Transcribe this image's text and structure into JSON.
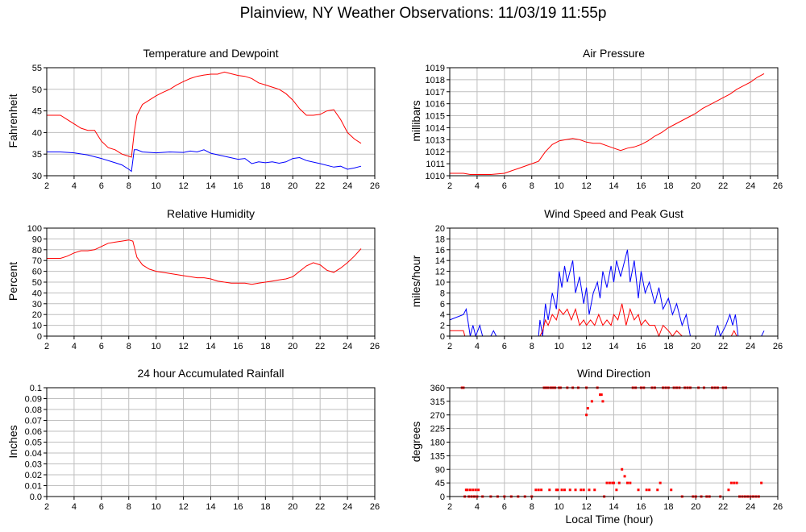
{
  "page": {
    "title": "Plainview, NY Weather Observations: 11/03/19 11:55p"
  },
  "chart_data": [
    {
      "id": "temp",
      "type": "line",
      "title": "Temperature and Dewpoint",
      "ylabel": "Fahrenheit",
      "xlabel": "",
      "xlim": [
        2,
        26
      ],
      "ylim": [
        30,
        55
      ],
      "xticks": [
        2,
        4,
        6,
        8,
        10,
        12,
        14,
        16,
        18,
        20,
        22,
        24,
        26
      ],
      "yticks": [
        30,
        35,
        40,
        45,
        50,
        55
      ],
      "grid": true,
      "series": [
        {
          "color": "#ff0000",
          "x": [
            2,
            3,
            3.5,
            4,
            4.5,
            5,
            5.5,
            6,
            6.5,
            7,
            7.5,
            8,
            8.2,
            8.4,
            8.6,
            9,
            9.5,
            10,
            10.5,
            11,
            11.5,
            12,
            12.5,
            13,
            13.5,
            14,
            14.5,
            15,
            15.5,
            16,
            16.5,
            17,
            17.5,
            18,
            18.5,
            19,
            19.5,
            20,
            20.5,
            21,
            21.5,
            22,
            22.5,
            23,
            23.5,
            24,
            24.5,
            25
          ],
          "y": [
            44,
            44,
            43,
            42,
            41,
            40.5,
            40.5,
            38,
            36.5,
            36,
            35,
            34.5,
            34.3,
            40,
            44,
            46.5,
            47.5,
            48.5,
            49.3,
            50,
            51,
            51.8,
            52.5,
            53,
            53.3,
            53.5,
            53.5,
            54,
            53.6,
            53.2,
            53,
            52.5,
            51.5,
            51,
            50.5,
            50,
            49,
            47.5,
            45.5,
            44,
            44,
            44.2,
            45,
            45.3,
            43,
            40,
            38.5,
            37.5
          ]
        },
        {
          "color": "#0000ff",
          "x": [
            2,
            3,
            4,
            5,
            6,
            7,
            7.5,
            8,
            8.2,
            8.4,
            8.6,
            9,
            10,
            11,
            12,
            12.5,
            13,
            13.5,
            14,
            15,
            16,
            16.5,
            17,
            17.5,
            18,
            18.5,
            19,
            19.5,
            20,
            20.5,
            21,
            22,
            23,
            23.5,
            24,
            24.5,
            25
          ],
          "y": [
            35.5,
            35.5,
            35.3,
            34.8,
            34,
            33,
            32.5,
            31.5,
            31,
            36,
            36,
            35.5,
            35.3,
            35.5,
            35.4,
            35.7,
            35.5,
            36,
            35.2,
            34.5,
            33.8,
            34,
            32.8,
            33.2,
            33,
            33.2,
            32.9,
            33.2,
            34,
            34.2,
            33.5,
            32.8,
            32,
            32.2,
            31.5,
            31.8,
            32.2
          ]
        }
      ]
    },
    {
      "id": "pressure",
      "type": "line",
      "title": "Air Pressure",
      "ylabel": "millibars",
      "xlabel": "",
      "xlim": [
        2,
        26
      ],
      "ylim": [
        1010,
        1019
      ],
      "xticks": [
        2,
        4,
        6,
        8,
        10,
        12,
        14,
        16,
        18,
        20,
        22,
        24,
        26
      ],
      "yticks": [
        1010,
        1011,
        1012,
        1013,
        1014,
        1015,
        1016,
        1017,
        1018,
        1019
      ],
      "grid": true,
      "series": [
        {
          "color": "#ff0000",
          "x": [
            2,
            3,
            3.5,
            4,
            5,
            6,
            6.5,
            7,
            7.5,
            8,
            8.5,
            9,
            9.5,
            10,
            10.5,
            11,
            11.5,
            12,
            12.5,
            13,
            13.5,
            14,
            14.5,
            15,
            15.5,
            16,
            16.5,
            17,
            17.5,
            18,
            18.5,
            19,
            19.5,
            20,
            20.5,
            21,
            21.5,
            22,
            22.5,
            23,
            23.5,
            24,
            24.5,
            25
          ],
          "y": [
            1010.2,
            1010.2,
            1010.1,
            1010.1,
            1010.1,
            1010.2,
            1010.4,
            1010.6,
            1010.8,
            1011,
            1011.2,
            1012,
            1012.6,
            1012.9,
            1013,
            1013.1,
            1013,
            1012.8,
            1012.7,
            1012.7,
            1012.5,
            1012.3,
            1012.1,
            1012.3,
            1012.4,
            1012.6,
            1012.9,
            1013.3,
            1013.6,
            1014,
            1014.3,
            1014.6,
            1014.9,
            1015.2,
            1015.6,
            1015.9,
            1016.2,
            1016.5,
            1016.8,
            1017.2,
            1017.5,
            1017.8,
            1018.2,
            1018.5
          ]
        }
      ]
    },
    {
      "id": "humidity",
      "type": "line",
      "title": "Relative Humidity",
      "ylabel": "Percent",
      "xlabel": "",
      "xlim": [
        2,
        26
      ],
      "ylim": [
        0,
        100
      ],
      "xticks": [
        2,
        4,
        6,
        8,
        10,
        12,
        14,
        16,
        18,
        20,
        22,
        24,
        26
      ],
      "yticks": [
        0,
        10,
        20,
        30,
        40,
        50,
        60,
        70,
        80,
        90,
        100
      ],
      "grid": true,
      "series": [
        {
          "color": "#ff0000",
          "x": [
            2,
            3,
            3.5,
            4,
            4.5,
            5,
            5.5,
            6,
            6.5,
            7,
            7.5,
            8,
            8.3,
            8.6,
            9,
            9.5,
            10,
            10.5,
            11,
            11.5,
            12,
            12.5,
            13,
            13.5,
            14,
            14.5,
            15,
            15.5,
            16,
            16.5,
            17,
            17.5,
            18,
            18.5,
            19,
            19.5,
            20,
            20.5,
            21,
            21.5,
            22,
            22.5,
            23,
            23.5,
            24,
            24.5,
            25
          ],
          "y": [
            72,
            72,
            74,
            77,
            79,
            79,
            80,
            83,
            86,
            87,
            88,
            89,
            88,
            73,
            66,
            62,
            60,
            59,
            58,
            57,
            56,
            55,
            54,
            54,
            53,
            51,
            50,
            49,
            49,
            49,
            48,
            49,
            50,
            51,
            52,
            53,
            55,
            60,
            65,
            68,
            66,
            61,
            59,
            63,
            68,
            74,
            81
          ]
        }
      ]
    },
    {
      "id": "wind",
      "type": "line",
      "title": "Wind Speed and Peak Gust",
      "ylabel": "miles/hour",
      "xlabel": "",
      "xlim": [
        2,
        26
      ],
      "ylim": [
        0,
        20
      ],
      "xticks": [
        2,
        4,
        6,
        8,
        10,
        12,
        14,
        16,
        18,
        20,
        22,
        24,
        26
      ],
      "yticks": [
        0,
        2,
        4,
        6,
        8,
        10,
        12,
        14,
        16,
        18,
        20
      ],
      "grid": true,
      "series": [
        {
          "color": "#0000ff",
          "x": [
            2,
            3,
            3.2,
            3.5,
            3.7,
            3.9,
            4.2,
            4.4,
            5,
            5.2,
            5.4,
            8.5,
            8.6,
            8.8,
            9,
            9.2,
            9.5,
            9.8,
            10,
            10.2,
            10.4,
            10.6,
            10.8,
            11,
            11.2,
            11.5,
            11.8,
            12,
            12.2,
            12.5,
            12.8,
            13,
            13.2,
            13.5,
            13.8,
            14,
            14.2,
            14.5,
            14.7,
            15,
            15.2,
            15.5,
            15.8,
            16,
            16.3,
            16.6,
            17,
            17.3,
            17.6,
            18,
            18.3,
            18.6,
            19,
            19.3,
            19.6,
            20,
            21.4,
            21.6,
            21.8,
            22.2,
            22.5,
            22.7,
            22.9,
            23.1,
            24.8,
            25
          ],
          "y": [
            3,
            4,
            5,
            0,
            2,
            0,
            2,
            0,
            0,
            1,
            0,
            0,
            3,
            0,
            6,
            3,
            8,
            5,
            12,
            9,
            13,
            10,
            12,
            14,
            8,
            11,
            6,
            9,
            4,
            8,
            10,
            7,
            12,
            9,
            13,
            10,
            14,
            11,
            13,
            16,
            10,
            14,
            7,
            12,
            8,
            10,
            6,
            9,
            5,
            7,
            4,
            6,
            2,
            4,
            0,
            0,
            0,
            2,
            0,
            2,
            4,
            2,
            4,
            0,
            0,
            1
          ]
        },
        {
          "color": "#ff0000",
          "x": [
            2,
            3,
            3.1,
            8.6,
            8.8,
            9,
            9.2,
            9.5,
            9.8,
            10,
            10.3,
            10.6,
            10.9,
            11.2,
            11.5,
            11.8,
            12,
            12.3,
            12.6,
            12.9,
            13.2,
            13.5,
            13.8,
            14,
            14.3,
            14.6,
            14.9,
            15.2,
            15.5,
            15.8,
            16,
            16.3,
            16.6,
            17,
            17.3,
            17.6,
            18,
            18.3,
            18.6,
            19,
            22.6,
            22.8,
            23
          ],
          "y": [
            1,
            1,
            0,
            0,
            1,
            3,
            2,
            4,
            3,
            5,
            4,
            5,
            3,
            5,
            2,
            3,
            2,
            3,
            2,
            4,
            2,
            3,
            2,
            4,
            3,
            6,
            2,
            5,
            3,
            4,
            2,
            3,
            2,
            2,
            0,
            2,
            1,
            0,
            1,
            0,
            0,
            1,
            0
          ]
        }
      ]
    },
    {
      "id": "rain",
      "type": "line",
      "title": "24 hour Accumulated Rainfall",
      "ylabel": "Inches",
      "xlabel": "",
      "xlim": [
        2,
        26
      ],
      "ylim": [
        0,
        0.1
      ],
      "xticks": [
        2,
        4,
        6,
        8,
        10,
        12,
        14,
        16,
        18,
        20,
        22,
        24,
        26
      ],
      "yticks": [
        "0.0",
        "0.01",
        "0.02",
        "0.03",
        "0.04",
        "0.05",
        "0.06",
        "0.07",
        "0.08",
        "0.09",
        "0.1"
      ],
      "grid": true,
      "series": [
        {
          "color": "#ff0000",
          "x": [
            2,
            25
          ],
          "y": [
            0,
            0
          ]
        }
      ]
    },
    {
      "id": "direction",
      "type": "scatter",
      "title": "Wind Direction",
      "ylabel": "degrees",
      "xlabel": "Local Time (hour)",
      "xlim": [
        2,
        26
      ],
      "ylim": [
        0,
        360
      ],
      "xticks": [
        2,
        4,
        6,
        8,
        10,
        12,
        14,
        16,
        18,
        20,
        22,
        24,
        26
      ],
      "yticks": [
        0,
        45,
        90,
        135,
        180,
        225,
        270,
        315,
        360
      ],
      "grid": true,
      "series": [
        {
          "color": "#ff0000",
          "x": [
            2.9,
            3.0,
            3.1,
            3.2,
            3.3,
            3.4,
            3.5,
            3.6,
            3.7,
            3.8,
            3.9,
            4.0,
            4.1,
            4.4,
            5.0,
            5.5,
            6.0,
            6.5,
            7.0,
            7.5,
            8.0,
            8.3,
            8.5,
            8.7,
            8.9,
            9.0,
            9.1,
            9.2,
            9.3,
            9.4,
            9.5,
            9.6,
            9.7,
            9.8,
            9.9,
            10.0,
            10.1,
            10.2,
            10.4,
            10.6,
            10.8,
            11.0,
            11.2,
            11.4,
            11.6,
            11.8,
            12.0,
            12.0,
            12.1,
            12.2,
            12.4,
            12.6,
            12.8,
            13.0,
            13.1,
            13.2,
            13.3,
            13.5,
            13.7,
            13.9,
            14.0,
            14.2,
            14.4,
            14.6,
            14.8,
            15.0,
            15.2,
            15.4,
            15.6,
            15.8,
            16.0,
            16.2,
            16.4,
            16.6,
            16.8,
            17.0,
            17.2,
            17.4,
            17.6,
            17.8,
            18.0,
            18.2,
            18.4,
            18.6,
            18.8,
            19.0,
            19.2,
            19.4,
            19.6,
            19.8,
            20.0,
            20.2,
            20.4,
            20.6,
            20.8,
            21.0,
            21.2,
            21.4,
            21.6,
            21.8,
            22.0,
            22.2,
            22.4,
            22.6,
            22.8,
            23.0,
            23.2,
            23.4,
            23.6,
            23.8,
            24.0,
            24.2,
            24.4,
            24.6,
            24.8
          ],
          "y": [
            360,
            360,
            0,
            22,
            22,
            0,
            22,
            0,
            22,
            0,
            22,
            0,
            22,
            0,
            0,
            0,
            0,
            0,
            0,
            0,
            0,
            22,
            22,
            22,
            360,
            360,
            360,
            360,
            22,
            360,
            360,
            360,
            360,
            22,
            22,
            360,
            360,
            22,
            22,
            360,
            22,
            360,
            22,
            360,
            22,
            22,
            270,
            360,
            292,
            22,
            315,
            22,
            360,
            337,
            337,
            315,
            0,
            45,
            45,
            45,
            45,
            22,
            45,
            90,
            67,
            45,
            45,
            360,
            360,
            22,
            360,
            360,
            22,
            22,
            360,
            360,
            22,
            45,
            360,
            360,
            360,
            22,
            360,
            360,
            360,
            0,
            360,
            360,
            360,
            0,
            0,
            360,
            0,
            360,
            0,
            0,
            360,
            360,
            360,
            0,
            360,
            360,
            22,
            45,
            45,
            45,
            0,
            0,
            0,
            0,
            0,
            0,
            0,
            0,
            45
          ]
        }
      ]
    }
  ]
}
